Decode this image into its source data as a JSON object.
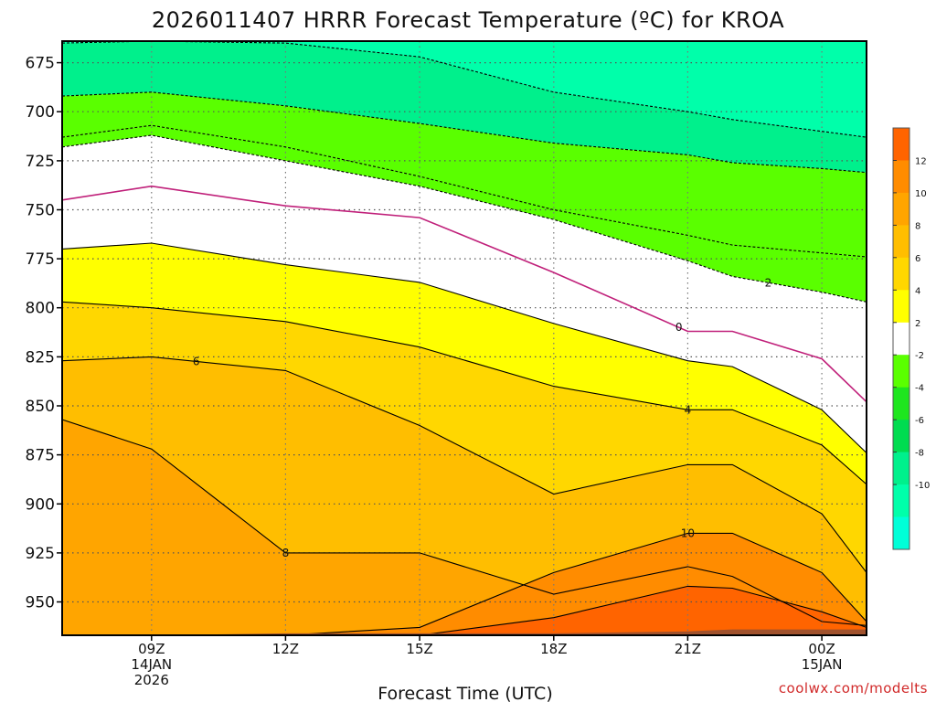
{
  "chart_data": {
    "type": "heatmap",
    "subtype": "filled-contour time-height cross section",
    "title": "2026011407 HRRR Forecast Temperature (ºC) for KROA",
    "xlabel": "Forecast Time (UTC)",
    "ylabel": "",
    "credit": "coolwx.com/modelts",
    "x_range_hours": [
      7,
      25
    ],
    "y_range_hPa": [
      967,
      664
    ],
    "x_ticks": [
      {
        "hour": 9,
        "lines": [
          "09Z",
          "14JAN",
          "2026"
        ]
      },
      {
        "hour": 12,
        "lines": [
          "12Z"
        ]
      },
      {
        "hour": 15,
        "lines": [
          "15Z"
        ]
      },
      {
        "hour": 18,
        "lines": [
          "18Z"
        ]
      },
      {
        "hour": 21,
        "lines": [
          "21Z"
        ]
      },
      {
        "hour": 24,
        "lines": [
          "00Z",
          "15JAN"
        ]
      }
    ],
    "y_ticks": [
      675,
      700,
      725,
      750,
      775,
      800,
      825,
      850,
      875,
      900,
      925,
      950
    ],
    "grid": "dotted",
    "colorbar": {
      "levels": [
        -12,
        -10,
        -8,
        -6,
        -4,
        -2,
        0,
        2,
        4,
        6,
        8,
        10,
        12,
        14
      ],
      "tick_labels": [
        "12",
        "10",
        "8",
        "6",
        "4",
        "2",
        "-2",
        "-4",
        "-6",
        "-8",
        "-10"
      ],
      "colors": [
        "#00ffd8",
        "#00ffaa",
        "#00f08c",
        "#00dc50",
        "#1ee61e",
        "#5aff00",
        "#ffffff",
        "#ffff00",
        "#ffd700",
        "#ffbe00",
        "#ffa500",
        "#ff8c00",
        "#ff6400"
      ]
    },
    "time_hours": [
      7,
      9,
      12,
      15,
      18,
      21,
      22,
      24,
      25
    ],
    "isotherms": [
      {
        "value": -4,
        "style": "dashed",
        "pressure": [
          665,
          664,
          665,
          672,
          690,
          700,
          704,
          710,
          713
        ]
      },
      {
        "value": -2,
        "style": "dashed",
        "pressure": [
          692,
          690,
          697,
          706,
          716,
          722,
          726,
          729,
          731
        ]
      },
      {
        "value": 2,
        "style": "dashed",
        "pressure": [
          713,
          707,
          718,
          733,
          750,
          763,
          768,
          772,
          774
        ]
      },
      {
        "value": 2,
        "style": "dashed",
        "pressure": [
          718,
          712,
          725,
          738,
          755,
          776,
          784,
          792,
          797
        ],
        "label": "2"
      },
      {
        "value": 0,
        "style": "solid",
        "pressure": [
          745,
          738,
          748,
          754,
          782,
          812,
          812,
          826,
          848
        ],
        "label": "0"
      },
      {
        "value": 2,
        "style": "solid",
        "pressure": [
          770,
          767,
          778,
          787,
          808,
          827,
          830,
          852,
          874
        ]
      },
      {
        "value": 4,
        "style": "solid",
        "pressure": [
          797,
          800,
          807,
          820,
          840,
          852,
          852,
          870,
          890
        ],
        "label": "4"
      },
      {
        "value": 6,
        "style": "solid",
        "pressure": [
          827,
          825,
          832,
          860,
          895,
          880,
          880,
          905,
          935
        ],
        "label": "6"
      },
      {
        "value": 8,
        "style": "solid",
        "pressure": [
          857,
          872,
          925,
          925,
          946,
          932,
          937,
          960,
          962
        ],
        "label": "8"
      },
      {
        "value": 10,
        "style": "solid",
        "pressure": [
          967,
          967,
          967,
          963,
          935,
          915,
          915,
          935,
          960
        ],
        "label": "10"
      },
      {
        "value": 12,
        "style": "solid",
        "pressure": [
          967,
          967,
          967,
          967,
          958,
          942,
          943,
          955,
          963
        ]
      }
    ],
    "surface_pressure_hPa": [
      967,
      967,
      966,
      966,
      966,
      965,
      964,
      964,
      964
    ],
    "surface_color": "#a0522d"
  }
}
